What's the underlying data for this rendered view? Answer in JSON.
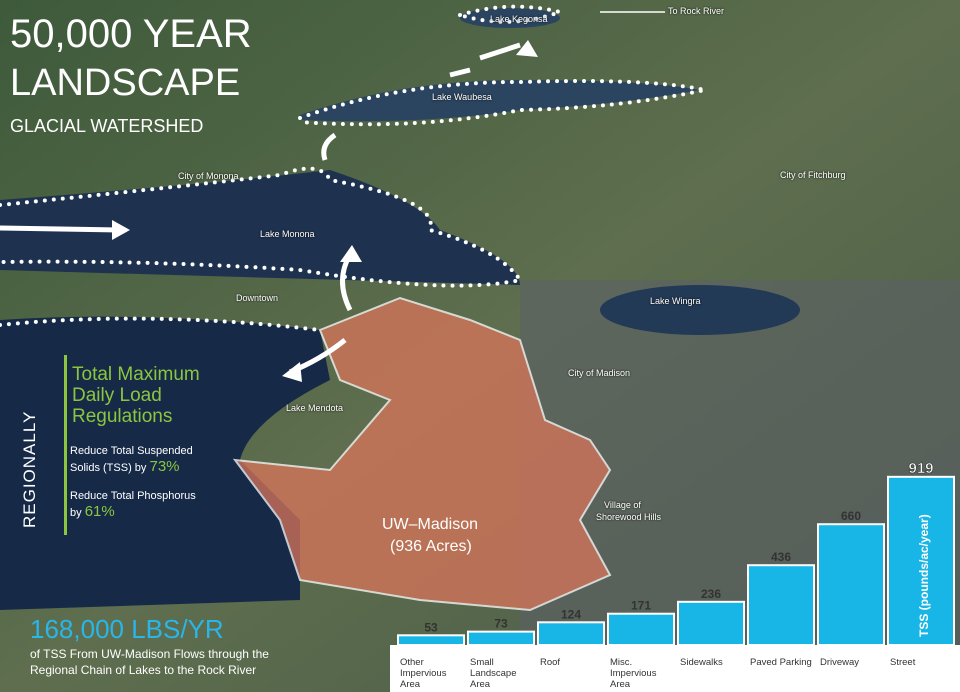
{
  "header": {
    "title_line1": "50,000 YEAR",
    "title_line2": "LANDSCAPE",
    "subtitle": "GLACIAL WATERSHED"
  },
  "map_labels": {
    "lake_kegonsa": "Lake Kegonsa",
    "to_rock_river": "To Rock River",
    "lake_waubesa": "Lake Waubesa",
    "city_of_monona": "City of Monona",
    "city_of_fitchburg": "City of Fitchburg",
    "lake_monona": "Lake Monona",
    "downtown": "Downtown",
    "lake_wingra": "Lake Wingra",
    "city_of_madison": "City of Madison",
    "lake_mendota": "Lake Mendota",
    "shorewood_line1": "Village of",
    "shorewood_line2": "Shorewood Hills",
    "campus": "UW–Madison",
    "campus_area": "(936 Acres)"
  },
  "regulations": {
    "side_label": "REGIONALLY",
    "heading_line1": "Total Maximum",
    "heading_line2": "Daily Load",
    "heading_line3": "Regulations",
    "tss_text_line1": "Reduce Total Suspended",
    "tss_text_line2": "Solids (TSS) by",
    "tss_percent": "73%",
    "phosphorus_text_line1": "Reduce Total Phosphorus",
    "phosphorus_text_line2": "by",
    "phosphorus_percent": "61%"
  },
  "footer": {
    "headline": "168,000 LBS/YR",
    "text_line1": "of TSS From UW-Madison Flows through the",
    "text_line2": "Regional Chain of Lakes to the Rock River"
  },
  "chart_data": {
    "type": "bar",
    "y_label": "TSS (pounds/ac/year)",
    "categories": [
      "Other Impervious Area",
      "Small Landscape Area",
      "Roof",
      "Misc. Impervious Area",
      "Sidewalks",
      "Paved Parking",
      "Driveway",
      "Street"
    ],
    "values": [
      53,
      73,
      124,
      171,
      236,
      436,
      660,
      919
    ],
    "color": "#18b6e6"
  }
}
